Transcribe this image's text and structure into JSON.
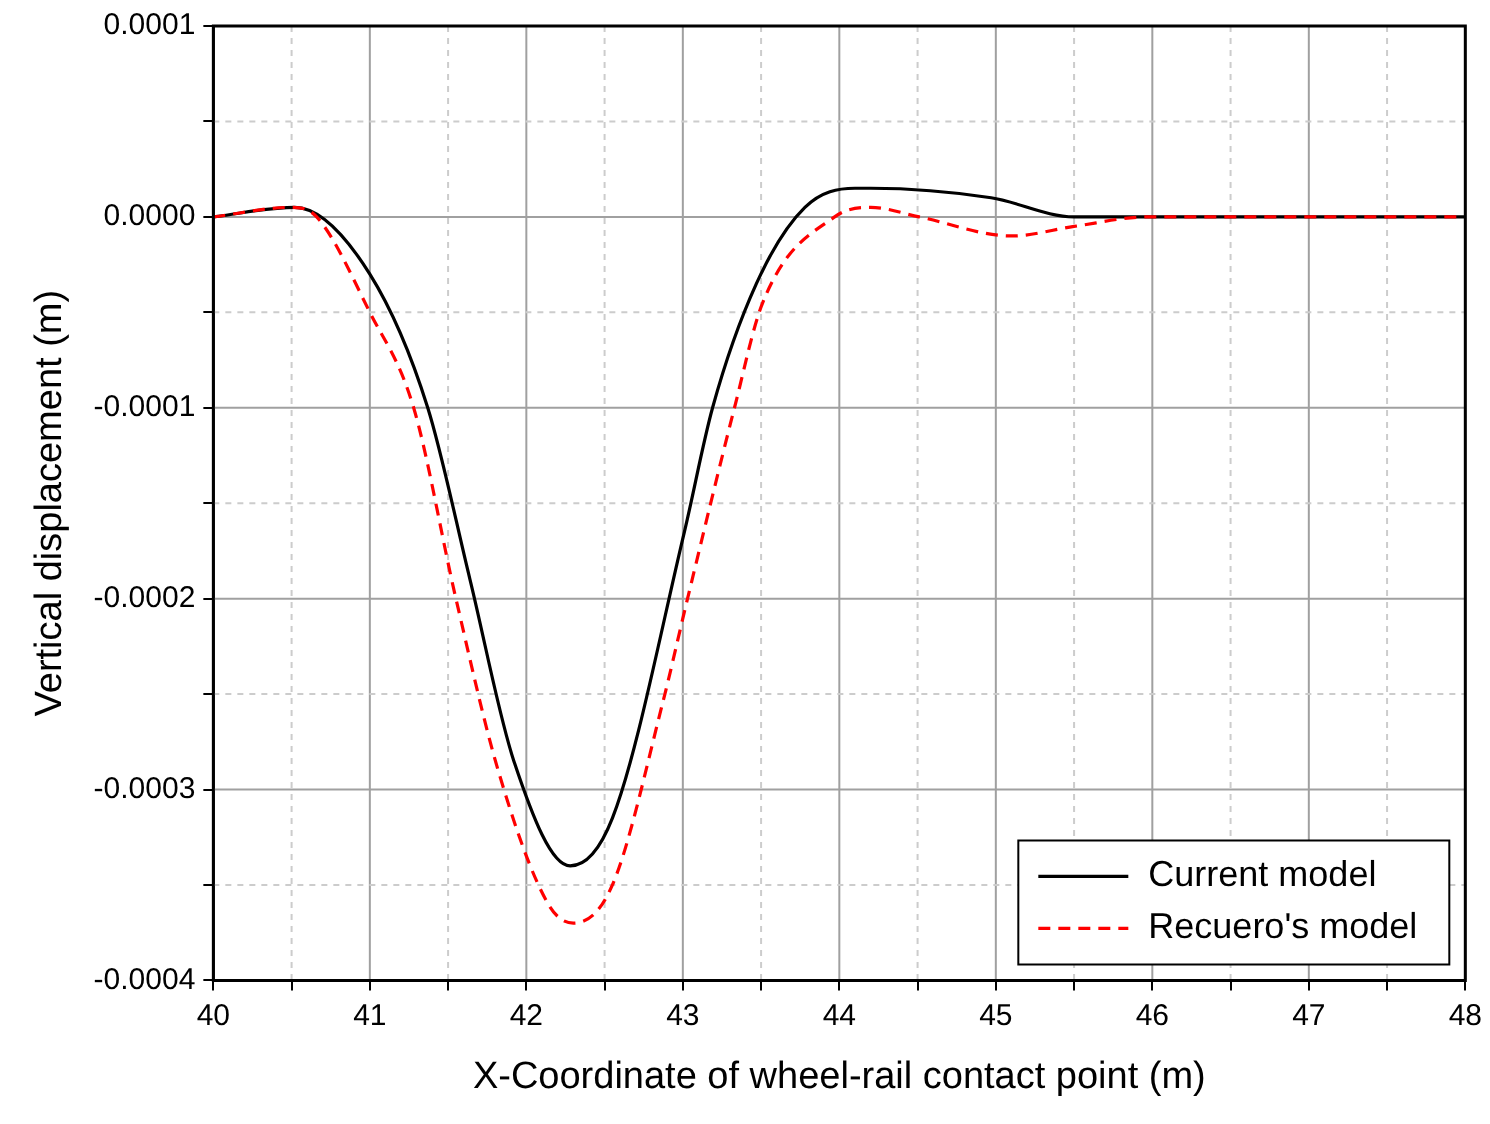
{
  "chart_data": {
    "type": "line",
    "xlabel": "X-Coordinate of wheel-rail contact point (m)",
    "ylabel": "Vertical displacement (m)",
    "xlim": [
      40,
      48
    ],
    "xticks": [
      40,
      {
        "value": 40.5,
        "label": null
      },
      41,
      {
        "value": 41.5,
        "label": null
      },
      42,
      {
        "value": 42.5,
        "label": null
      },
      43,
      {
        "value": 43.5,
        "label": null
      },
      44,
      {
        "value": 44.5,
        "label": null
      },
      45,
      {
        "value": 45.5,
        "label": null
      },
      46,
      {
        "value": 46.5,
        "label": null
      },
      47,
      {
        "value": 47.5,
        "label": null
      },
      48
    ],
    "ylim": [
      -0.0004,
      0.0001
    ],
    "yticks": [
      -0.0004,
      {
        "value": -0.00035,
        "label": null
      },
      -0.0003,
      {
        "value": -0.00025,
        "label": null
      },
      -0.0002,
      {
        "value": -0.00015,
        "label": null
      },
      -0.0001,
      {
        "value": -5e-05,
        "label": null
      },
      {
        "value": 0,
        "label": "0.0000"
      },
      {
        "value": 5e-05,
        "label": null
      },
      0.0001
    ],
    "grid": true,
    "legend": "bottom right",
    "marker": "none",
    "series": [
      {
        "name": "Current model",
        "color": "#000000",
        "line_style": "solid",
        "x": [
          40,
          40.52,
          41.0,
          41.37,
          41.64,
          41.92,
          42.28,
          42.55,
          43.01,
          43.19,
          43.47,
          43.78,
          44.1,
          44.2,
          44.97,
          45.5,
          46.0,
          47.0,
          48
        ],
        "values": [
          0,
          5e-06,
          -3e-05,
          -0.0001,
          -0.00019,
          -0.000285,
          -0.00034,
          -0.000315,
          -0.000165,
          -0.0001,
          -3.5e-05,
          5e-06,
          1.5e-05,
          1.5e-05,
          1e-05,
          0,
          0,
          0,
          0
        ]
      },
      {
        "name": "Recuero's model",
        "color": "#ff0000",
        "line_style": "dashed",
        "x": [
          40,
          40.5,
          40.66,
          41.0,
          41.28,
          41.55,
          41.82,
          42.14,
          42.3,
          42.55,
          42.87,
          43.03,
          43.33,
          43.51,
          43.97,
          44.2,
          44.51,
          45.1,
          45.5,
          45.97,
          46.3,
          46.7,
          48
        ],
        "values": [
          0,
          5e-06,
          0,
          -5e-05,
          -0.0001,
          -0.0002,
          -0.00029,
          -0.00036,
          -0.00037,
          -0.00035,
          -0.000255,
          -0.0002,
          -0.0001,
          -4.5e-05,
          0,
          5e-06,
          0,
          -1e-05,
          -5e-06,
          0,
          0,
          0,
          0
        ]
      }
    ]
  }
}
